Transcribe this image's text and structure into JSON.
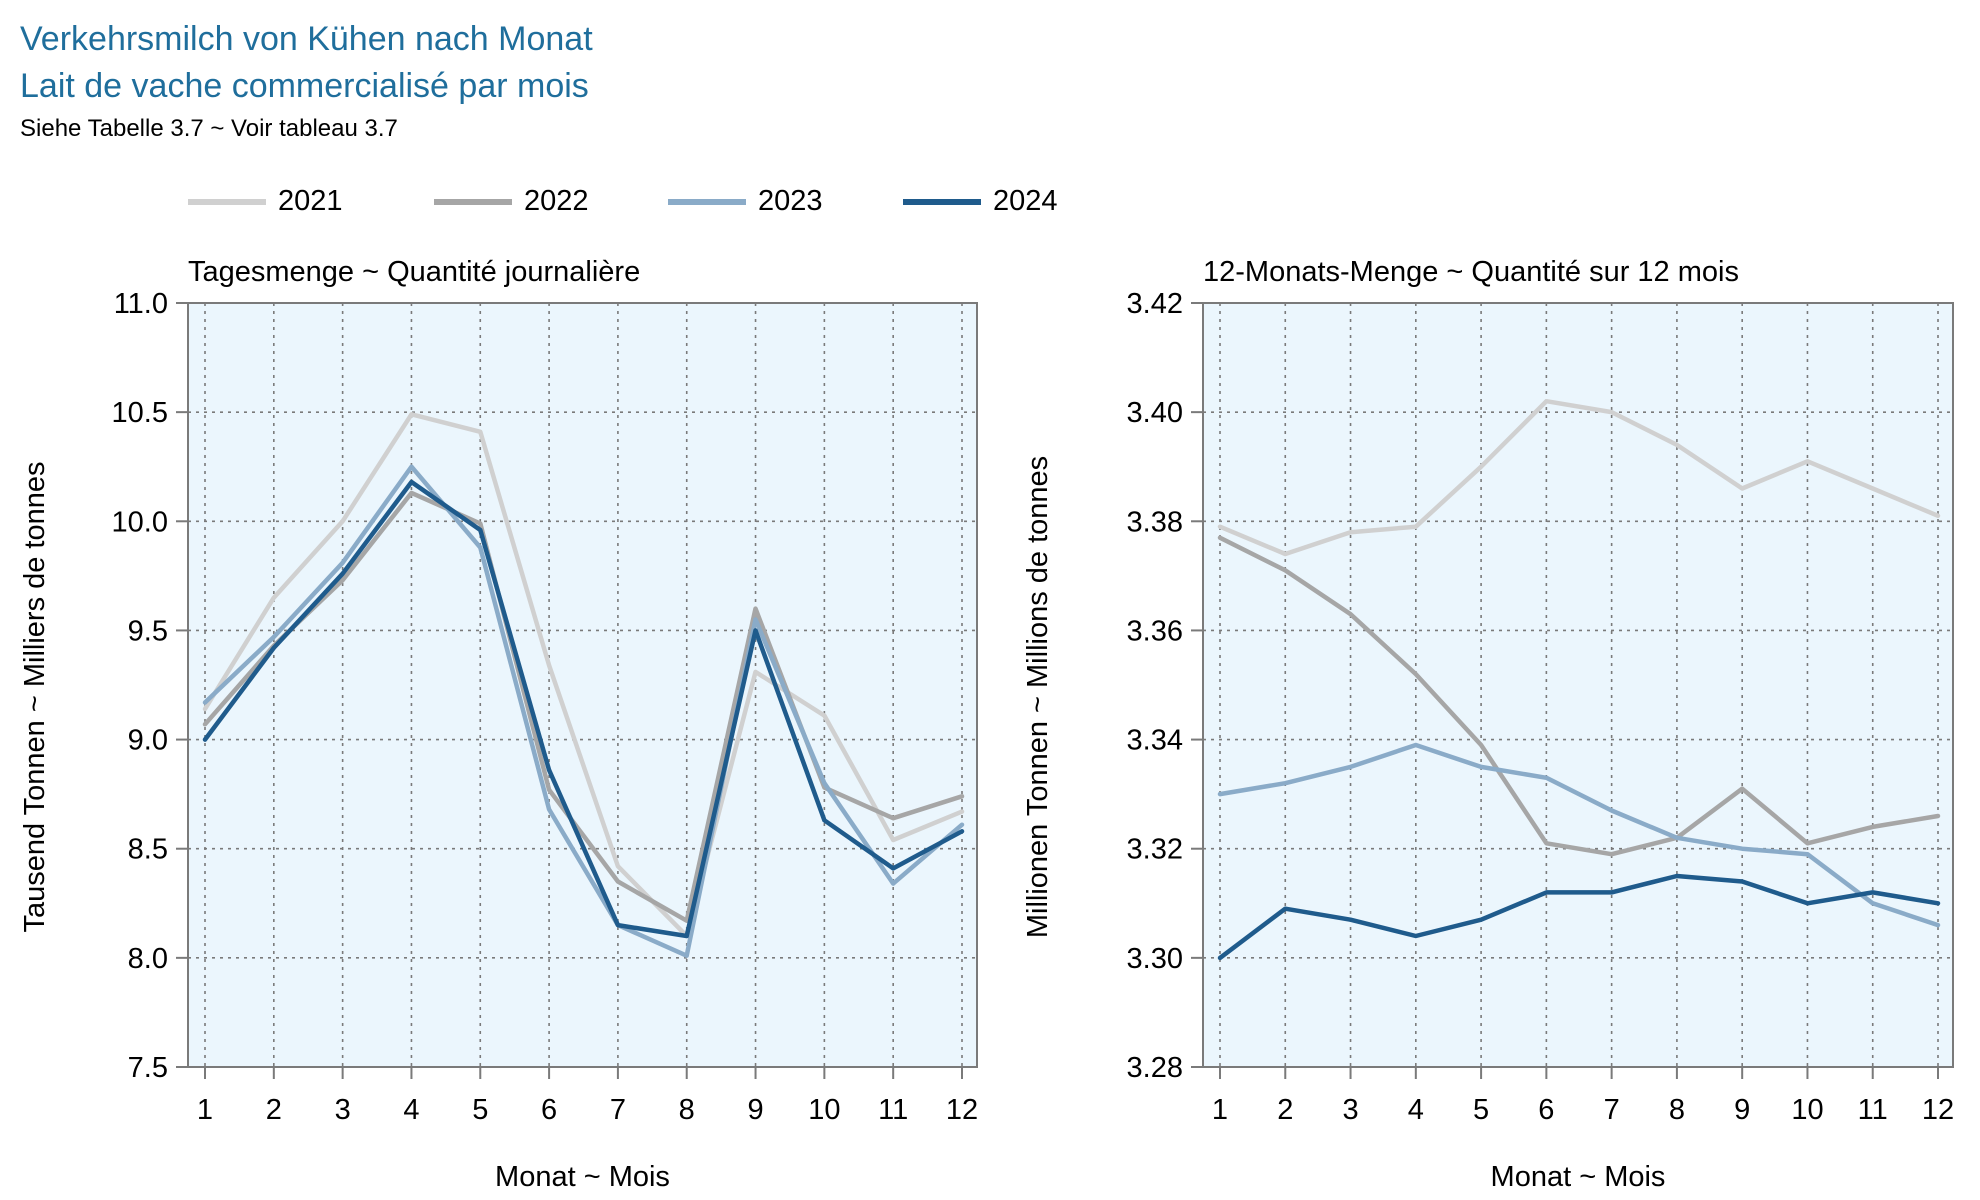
{
  "title_line1": "Verkehrsmilch von Kühen nach Monat",
  "title_line2": "Lait de vache commercialisé par mois",
  "subtitle": "Siehe Tabelle 3.7   ~   Voir tableau 3.7",
  "legend": [
    {
      "label": "2021",
      "color": "#d0d0d0"
    },
    {
      "label": "2022",
      "color": "#a6a6a6"
    },
    {
      "label": "2023",
      "color": "#8aabc8"
    },
    {
      "label": "2024",
      "color": "#1f5b8c"
    }
  ],
  "chart_data": [
    {
      "type": "line",
      "title": "Tagesmenge   ~   Quantité journalière",
      "xlabel": "Monat   ~   Mois",
      "ylabel": "Tausend Tonnen   ~   Milliers de tonnes",
      "x": [
        1,
        2,
        3,
        4,
        5,
        6,
        7,
        8,
        9,
        10,
        11,
        12
      ],
      "ylim": [
        7.5,
        11.0
      ],
      "yticks": [
        "7.5",
        "8.0",
        "8.5",
        "9.0",
        "9.5",
        "10.0",
        "10.5",
        "11.0"
      ],
      "xticks": [
        "1",
        "2",
        "3",
        "4",
        "5",
        "6",
        "7",
        "8",
        "9",
        "10",
        "11",
        "12"
      ],
      "grid": true,
      "background": "#ebf6fd",
      "series": [
        {
          "name": "2021",
          "color": "#d0d0d0",
          "values": [
            9.14,
            9.65,
            10.0,
            10.49,
            10.41,
            9.34,
            8.42,
            8.1,
            9.31,
            9.11,
            8.54,
            8.67
          ]
        },
        {
          "name": "2022",
          "color": "#a6a6a6",
          "values": [
            9.07,
            9.43,
            9.73,
            10.13,
            9.99,
            8.77,
            8.35,
            8.17,
            9.6,
            8.78,
            8.64,
            8.74
          ]
        },
        {
          "name": "2023",
          "color": "#8aabc8",
          "values": [
            9.17,
            9.47,
            9.81,
            10.25,
            9.88,
            8.68,
            8.15,
            8.01,
            9.55,
            8.8,
            8.34,
            8.61
          ]
        },
        {
          "name": "2024",
          "color": "#1f5b8c",
          "values": [
            9.0,
            9.42,
            9.76,
            10.18,
            9.96,
            8.86,
            8.15,
            8.1,
            9.5,
            8.63,
            8.41,
            8.58
          ]
        }
      ]
    },
    {
      "type": "line",
      "title": "12-Monats-Menge   ~   Quantité sur 12 mois",
      "xlabel": "Monat   ~   Mois",
      "ylabel": "Millionen Tonnen   ~   Millions de tonnes",
      "x": [
        1,
        2,
        3,
        4,
        5,
        6,
        7,
        8,
        9,
        10,
        11,
        12
      ],
      "ylim": [
        3.28,
        3.42
      ],
      "yticks": [
        "3.28",
        "3.30",
        "3.32",
        "3.34",
        "3.36",
        "3.38",
        "3.40",
        "3.42"
      ],
      "xticks": [
        "1",
        "2",
        "3",
        "4",
        "5",
        "6",
        "7",
        "8",
        "9",
        "10",
        "11",
        "12"
      ],
      "grid": true,
      "background": "#ebf6fd",
      "series": [
        {
          "name": "2021",
          "color": "#d0d0d0",
          "values": [
            3.379,
            3.374,
            3.378,
            3.379,
            3.39,
            3.402,
            3.4,
            3.394,
            3.386,
            3.391,
            3.386,
            3.381
          ]
        },
        {
          "name": "2022",
          "color": "#a6a6a6",
          "values": [
            3.377,
            3.371,
            3.363,
            3.352,
            3.339,
            3.321,
            3.319,
            3.322,
            3.331,
            3.321,
            3.324,
            3.326
          ]
        },
        {
          "name": "2023",
          "color": "#8aabc8",
          "values": [
            3.33,
            3.332,
            3.335,
            3.339,
            3.335,
            3.333,
            3.327,
            3.322,
            3.32,
            3.319,
            3.31,
            3.306
          ]
        },
        {
          "name": "2024",
          "color": "#1f5b8c",
          "values": [
            3.3,
            3.309,
            3.307,
            3.304,
            3.307,
            3.312,
            3.312,
            3.315,
            3.314,
            3.31,
            3.312,
            3.31
          ]
        }
      ]
    }
  ]
}
